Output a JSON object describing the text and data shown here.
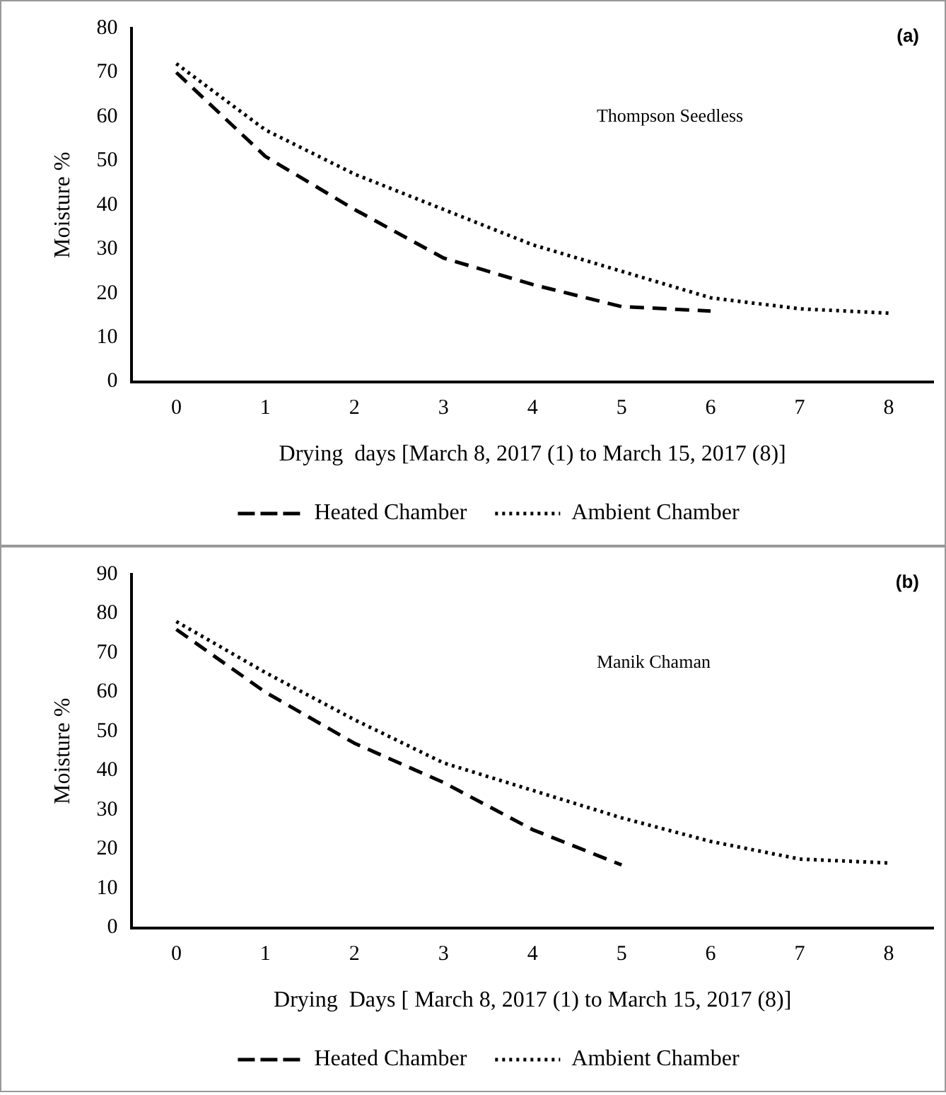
{
  "chart_data": [
    {
      "type": "line",
      "categories": [
        "0",
        "1",
        "2",
        "3",
        "4",
        "5",
        "6",
        "7",
        "8"
      ],
      "xlabel": "Drying  days [March 8, 2017 (1) to March 15, 2017 (8)]",
      "ylabel": "Moisture %",
      "ylim": [
        0,
        80
      ],
      "yticks": [
        0,
        10,
        20,
        30,
        40,
        50,
        60,
        70,
        80
      ],
      "grid": false,
      "legend": "bottom",
      "marker": "none",
      "annotations": [
        "(a)",
        "Thompson Seedless"
      ],
      "series": [
        {
          "name": "Heated Chamber",
          "color": "#000000",
          "line_style": "dashed",
          "values": [
            70,
            51,
            39,
            28,
            22,
            17,
            16,
            null,
            null
          ]
        },
        {
          "name": "Ambient Chamber",
          "color": "#000000",
          "line_style": "dotted",
          "values": [
            72,
            57,
            47,
            39,
            31,
            25,
            19,
            16.5,
            15.5
          ]
        }
      ]
    },
    {
      "type": "line",
      "categories": [
        "0",
        "1",
        "2",
        "3",
        "4",
        "5",
        "6",
        "7",
        "8"
      ],
      "xlabel": "Drying  Days [ March 8, 2017 (1) to March 15, 2017 (8)]",
      "ylabel": "Moisture %",
      "ylim": [
        0,
        90
      ],
      "yticks": [
        0,
        10,
        20,
        30,
        40,
        50,
        60,
        70,
        80,
        90
      ],
      "grid": false,
      "legend": "bottom",
      "marker": "none",
      "annotations": [
        "(b)",
        "Manik Chaman"
      ],
      "series": [
        {
          "name": "Heated Chamber",
          "color": "#000000",
          "line_style": "dashed",
          "values": [
            76,
            60,
            47,
            37,
            25,
            16,
            null,
            null,
            null
          ]
        },
        {
          "name": "Ambient Chamber",
          "color": "#000000",
          "line_style": "dotted",
          "values": [
            78,
            65,
            53,
            42,
            35,
            28,
            22,
            17.5,
            16.5
          ]
        }
      ]
    }
  ]
}
